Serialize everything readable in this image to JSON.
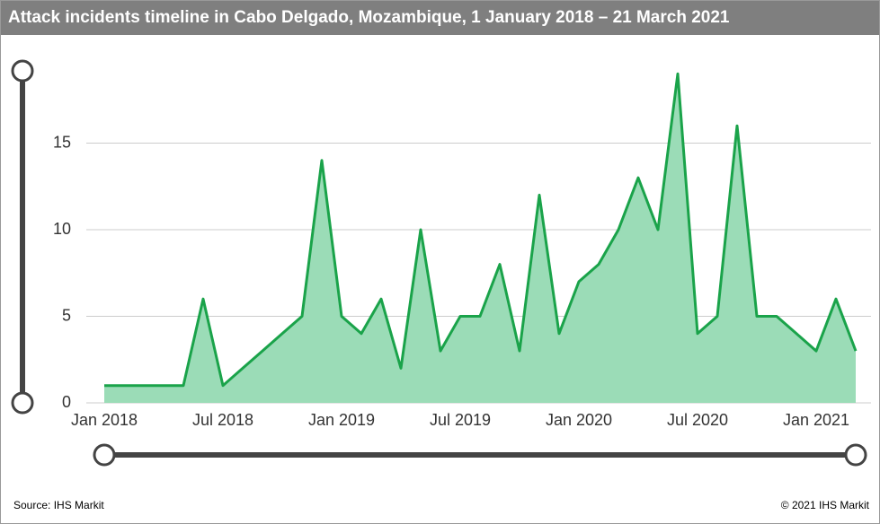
{
  "title": "Attack incidents timeline in Cabo Delgado, Mozambique, 1 January 2018 – 21 March 2021",
  "source": "Source: IHS Markit",
  "copyright": "© 2021 IHS Markit",
  "chart_data": {
    "type": "area",
    "color": "#1aa34a",
    "fill": "#9bdcb7",
    "x": [
      "2018-01",
      "2018-02",
      "2018-03",
      "2018-04",
      "2018-05",
      "2018-06",
      "2018-07",
      "2018-08",
      "2018-09",
      "2018-10",
      "2018-11",
      "2018-12",
      "2019-01",
      "2019-02",
      "2019-03",
      "2019-04",
      "2019-05",
      "2019-06",
      "2019-07",
      "2019-08",
      "2019-09",
      "2019-10",
      "2019-11",
      "2019-12",
      "2020-01",
      "2020-02",
      "2020-03",
      "2020-04",
      "2020-05",
      "2020-06",
      "2020-07",
      "2020-08",
      "2020-09",
      "2020-10",
      "2020-11",
      "2020-12",
      "2021-01",
      "2021-02",
      "2021-03"
    ],
    "values": [
      1,
      1,
      1,
      1,
      1,
      6,
      1,
      2,
      3,
      4,
      5,
      14,
      5,
      4,
      6,
      2,
      10,
      3,
      5,
      5,
      8,
      3,
      12,
      4,
      7,
      8,
      10,
      13,
      10,
      19,
      4,
      5,
      16,
      5,
      5,
      4,
      3,
      6,
      3
    ],
    "xticks": [
      {
        "value": "2018-01",
        "label": "Jan 2018"
      },
      {
        "value": "2018-07",
        "label": "Jul 2018"
      },
      {
        "value": "2019-01",
        "label": "Jan 2019"
      },
      {
        "value": "2019-07",
        "label": "Jul 2019"
      },
      {
        "value": "2020-01",
        "label": "Jan 2020"
      },
      {
        "value": "2020-07",
        "label": "Jul 2020"
      },
      {
        "value": "2021-01",
        "label": "Jan 2021"
      }
    ],
    "ylim": [
      0,
      20
    ],
    "yticks": [
      0,
      5,
      10,
      15
    ],
    "grid": true
  }
}
